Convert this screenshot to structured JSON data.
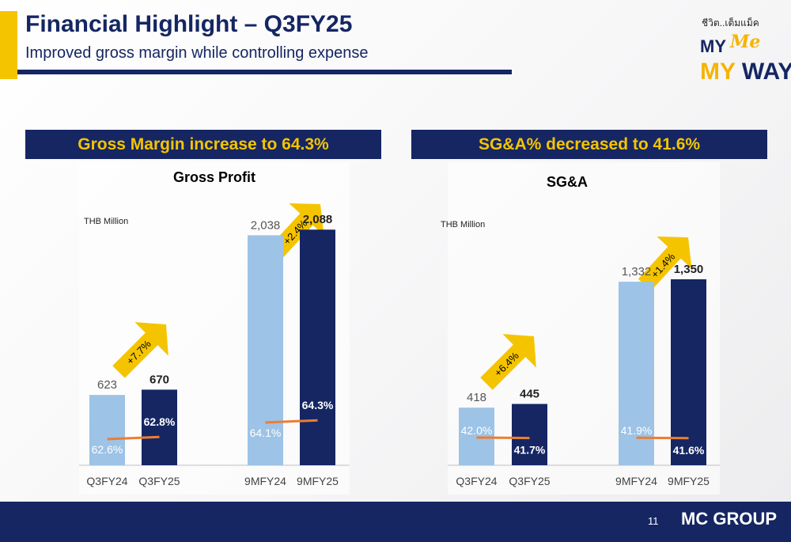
{
  "header": {
    "title": "Financial Highlight – Q3FY25",
    "subtitle": "Improved gross margin while controlling expense"
  },
  "logo": {
    "thai_text": "ชีวิต..เต็มแม็ค",
    "line1": "MY",
    "me": "Me",
    "line2_a": "MY",
    "line2_b": "WAY"
  },
  "colors": {
    "navy": "#152663",
    "light_blue": "#9dc3e6",
    "yellow": "#f5c400",
    "orange_line": "#ed7d31"
  },
  "footer": {
    "page_number": "11",
    "brand": "MC GROUP"
  },
  "panels": [
    {
      "banner": "Gross Margin increase to 64.3%",
      "chart_title": "Gross Profit",
      "unit": "THB Million"
    },
    {
      "banner": "SG&A% decreased to 41.6%",
      "chart_title": "SG&A",
      "unit": "THB Million"
    }
  ],
  "chart_data": [
    {
      "type": "bar",
      "title": "Gross Profit",
      "unit_label": "THB Million",
      "categories": [
        "Q3FY24",
        "Q3FY25",
        "9MFY24",
        "9MFY25"
      ],
      "values": [
        623,
        670,
        2038,
        2088
      ],
      "value_labels": [
        "623",
        "670",
        "2,038",
        "2,088"
      ],
      "ratio_labels": [
        "62.6%",
        "62.8%",
        "64.1%",
        "64.3%"
      ],
      "ratios": [
        62.6,
        62.8,
        64.1,
        64.3
      ],
      "growth": [
        {
          "label": "+7.7%",
          "between": [
            "Q3FY24",
            "Q3FY25"
          ]
        },
        {
          "label": "+2.4%",
          "between": [
            "9MFY24",
            "9MFY25"
          ]
        }
      ],
      "ylim": [
        0,
        2300
      ]
    },
    {
      "type": "bar",
      "title": "SG&A",
      "unit_label": "THB Million",
      "categories": [
        "Q3FY24",
        "Q3FY25",
        "9MFY24",
        "9MFY25"
      ],
      "values": [
        418,
        445,
        1332,
        1350
      ],
      "value_labels": [
        "418",
        "445",
        "1,332",
        "1,350"
      ],
      "ratio_labels": [
        "42.0%",
        "41.7%",
        "41.9%",
        "41.6%"
      ],
      "ratios": [
        42.0,
        41.7,
        41.9,
        41.6
      ],
      "growth": [
        {
          "label": "+6.4%",
          "between": [
            "Q3FY24",
            "Q3FY25"
          ]
        },
        {
          "label": "+1.4%",
          "between": [
            "9MFY24",
            "9MFY25"
          ]
        }
      ],
      "ylim": [
        0,
        1700
      ]
    }
  ]
}
